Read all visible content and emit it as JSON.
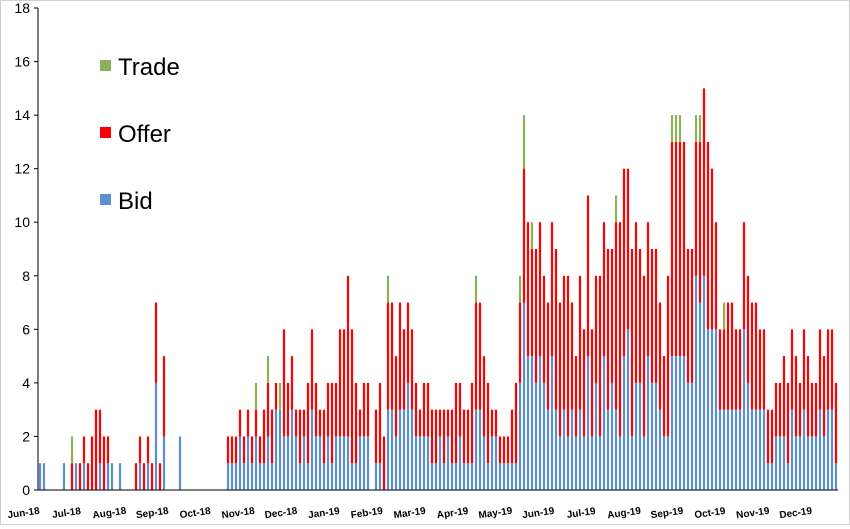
{
  "chart_data": {
    "type": "bar",
    "stacked": true,
    "title": "",
    "xlabel": "",
    "ylabel": "",
    "ylim": [
      0,
      18
    ],
    "yticks": [
      0,
      2,
      4,
      6,
      8,
      10,
      12,
      14,
      16,
      18
    ],
    "grid": false,
    "legend_position": "top-left",
    "x_tick_labels": [
      "Jun-18",
      "Jul-18",
      "Aug-18",
      "Sep-18",
      "Oct-18",
      "Nov-18",
      "Dec-18",
      "Jan-19",
      "Feb-19",
      "Mar-19",
      "Apr-19",
      "May-19",
      "Jun-19",
      "Jul-19",
      "Aug-19",
      "Sep-19",
      "Oct-19",
      "Nov-19",
      "Dec-19"
    ],
    "n_days": 200,
    "series": [
      {
        "name": "Bid",
        "color": "#5b8fd0",
        "values": [
          1,
          1,
          0,
          0,
          0,
          0,
          1,
          0,
          0,
          1,
          0,
          1,
          0,
          0,
          0,
          1,
          0,
          1,
          1,
          0,
          1,
          0,
          0,
          0,
          0,
          1,
          0,
          1,
          0,
          4,
          0,
          2,
          0,
          0,
          0,
          2,
          0,
          0,
          0,
          0,
          0,
          0,
          0,
          0,
          0,
          0,
          0,
          1,
          1,
          1,
          2,
          1,
          2,
          1,
          2,
          1,
          1,
          2,
          1,
          3,
          3,
          2,
          2,
          3,
          2,
          1,
          2,
          1,
          3,
          2,
          2,
          1,
          2,
          1,
          2,
          2,
          2,
          2,
          1,
          1,
          2,
          2,
          2,
          0,
          1,
          1,
          0,
          3,
          3,
          2,
          3,
          3,
          4,
          3,
          2,
          2,
          2,
          2,
          1,
          1,
          2,
          1,
          2,
          1,
          1,
          2,
          1,
          1,
          1,
          3,
          3,
          2,
          1,
          2,
          2,
          1,
          1,
          1,
          1,
          1,
          4,
          7,
          5,
          5,
          4,
          5,
          4,
          3,
          5,
          3,
          2,
          3,
          2,
          3,
          2,
          3,
          2,
          5,
          2,
          4,
          2,
          5,
          3,
          4,
          3,
          2,
          5,
          6,
          2,
          4,
          4,
          2,
          5,
          4,
          4,
          3,
          2,
          2,
          5,
          5,
          5,
          5,
          4,
          4,
          8,
          7,
          8,
          6,
          6,
          6,
          3,
          3,
          3,
          3,
          3,
          3,
          6,
          4,
          3,
          3,
          3,
          3,
          1,
          1,
          2,
          2,
          2,
          1,
          3,
          2,
          2,
          3,
          2,
          2,
          2,
          3,
          2,
          3,
          3,
          1
        ]
      },
      {
        "name": "Offer",
        "color": "#ff0000",
        "values": [
          0,
          0,
          0,
          0,
          0,
          0,
          0,
          0,
          1,
          0,
          1,
          1,
          1,
          2,
          3,
          2,
          2,
          1,
          0,
          0,
          0,
          0,
          0,
          0,
          1,
          1,
          1,
          1,
          1,
          3,
          1,
          3,
          0,
          0,
          0,
          0,
          0,
          0,
          0,
          0,
          0,
          0,
          0,
          0,
          0,
          0,
          0,
          1,
          1,
          1,
          1,
          1,
          1,
          1,
          1,
          1,
          2,
          2,
          2,
          1,
          0,
          4,
          2,
          2,
          1,
          2,
          1,
          3,
          3,
          2,
          1,
          2,
          2,
          3,
          2,
          4,
          4,
          6,
          5,
          3,
          1,
          2,
          2,
          0,
          2,
          3,
          2,
          4,
          4,
          3,
          4,
          3,
          3,
          3,
          2,
          1,
          2,
          2,
          2,
          2,
          1,
          2,
          1,
          2,
          3,
          2,
          2,
          2,
          3,
          4,
          4,
          3,
          3,
          1,
          1,
          1,
          1,
          1,
          2,
          3,
          3,
          5,
          5,
          4,
          5,
          5,
          4,
          4,
          5,
          6,
          5,
          5,
          6,
          4,
          3,
          5,
          4,
          6,
          4,
          4,
          6,
          5,
          6,
          5,
          7,
          8,
          7,
          6,
          7,
          6,
          5,
          6,
          5,
          5,
          5,
          4,
          3,
          6,
          8,
          8,
          8,
          8,
          5,
          5,
          5,
          6,
          7,
          7,
          6,
          4,
          3,
          3,
          4,
          4,
          3,
          3,
          4,
          4,
          4,
          4,
          3,
          3,
          2,
          2,
          2,
          2,
          3,
          3,
          3,
          3,
          2,
          3,
          3,
          2,
          2,
          3,
          3,
          3,
          3,
          3
        ]
      },
      {
        "name": "Trade",
        "color": "#8fb05a",
        "values": [
          0,
          0,
          0,
          0,
          0,
          0,
          0,
          0,
          1,
          0,
          0,
          0,
          0,
          0,
          0,
          0,
          0,
          0,
          0,
          0,
          0,
          0,
          0,
          0,
          0,
          0,
          0,
          0,
          0,
          0,
          0,
          0,
          0,
          0,
          0,
          0,
          0,
          0,
          0,
          0,
          0,
          0,
          0,
          0,
          0,
          0,
          0,
          0,
          0,
          0,
          0,
          0,
          0,
          0,
          1,
          0,
          0,
          1,
          0,
          0,
          1,
          0,
          0,
          0,
          0,
          0,
          0,
          0,
          0,
          0,
          0,
          0,
          0,
          0,
          0,
          0,
          0,
          0,
          0,
          0,
          0,
          0,
          0,
          0,
          0,
          0,
          0,
          1,
          0,
          0,
          0,
          0,
          0,
          0,
          0,
          0,
          0,
          0,
          0,
          0,
          0,
          0,
          0,
          0,
          0,
          0,
          0,
          0,
          0,
          1,
          0,
          0,
          0,
          0,
          0,
          0,
          0,
          0,
          0,
          0,
          1,
          2,
          0,
          1,
          0,
          0,
          0,
          0,
          0,
          0,
          0,
          0,
          0,
          0,
          0,
          0,
          0,
          0,
          0,
          0,
          0,
          0,
          0,
          0,
          1,
          0,
          0,
          0,
          0,
          0,
          0,
          0,
          0,
          0,
          0,
          0,
          0,
          0,
          1,
          1,
          1,
          0,
          0,
          0,
          1,
          1,
          0,
          0,
          0,
          0,
          0,
          1,
          0,
          0,
          0,
          0,
          0,
          0,
          0,
          0,
          0,
          0,
          0,
          0,
          0,
          0,
          0,
          0,
          0,
          0,
          0,
          0,
          0,
          0,
          0,
          0,
          0,
          0,
          0,
          0
        ]
      }
    ]
  }
}
